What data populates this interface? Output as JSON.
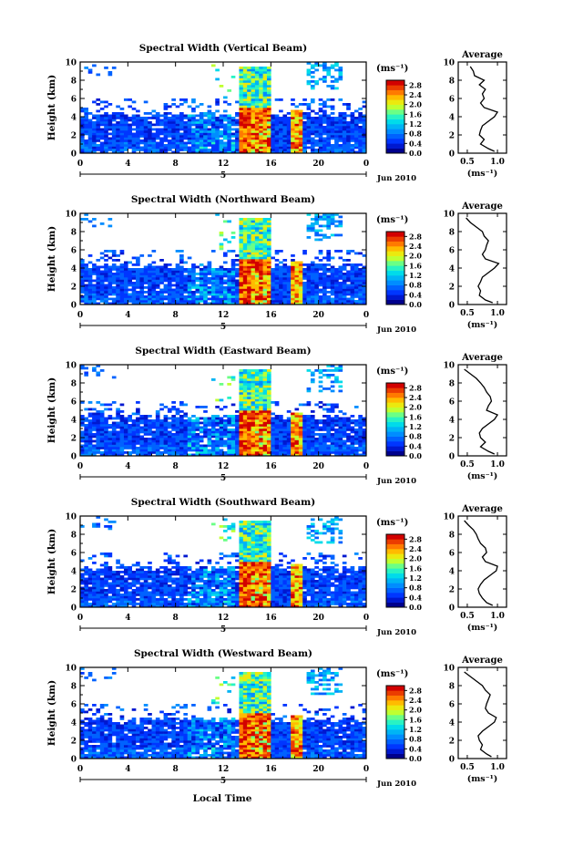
{
  "chart_data": {
    "type": "heatmap",
    "colorbar": {
      "unit": "(ms⁻¹)",
      "ticks": [
        "0.0",
        "0.4",
        "0.8",
        "1.2",
        "1.6",
        "2.0",
        "2.4",
        "2.8"
      ],
      "range": [
        0,
        3.0
      ]
    },
    "x_axis": {
      "ticks": [
        "0",
        "4",
        "8",
        "12",
        "16",
        "20",
        "0"
      ],
      "tick_values": [
        0,
        4,
        8,
        12,
        16,
        20,
        24
      ],
      "range": [
        0,
        24
      ],
      "date_marker": "5",
      "date_label": "Jun 2010",
      "label": "Local Time"
    },
    "y_axis": {
      "label": "Height (km)",
      "ticks": [
        "0",
        "2",
        "4",
        "6",
        "8",
        "10"
      ],
      "range": [
        0,
        10
      ]
    },
    "profile": {
      "title": "Average",
      "xlabel": "(ms⁻¹)",
      "x_ticks": [
        "0.5",
        "1.0"
      ],
      "x_range": [
        0.35,
        1.15
      ]
    },
    "panels": [
      {
        "title": "Spectral Width (Vertical Beam)",
        "avg_profile": {
          "height": [
            0.2,
            0.5,
            1.0,
            1.5,
            2.0,
            2.5,
            3.0,
            3.5,
            4.0,
            4.5,
            5.0,
            5.5,
            6.0,
            6.5,
            7.0,
            7.5,
            8.0,
            8.5,
            9.0,
            9.5
          ],
          "value": [
            0.95,
            0.85,
            0.72,
            0.78,
            0.7,
            0.72,
            0.75,
            0.85,
            0.95,
            1.0,
            0.78,
            0.72,
            0.78,
            0.75,
            0.8,
            0.7,
            0.78,
            0.62,
            0.6,
            0.55
          ]
        }
      },
      {
        "title": "Spectral Width (Northward Beam)",
        "avg_profile": {
          "height": [
            0.2,
            0.5,
            1.0,
            1.5,
            2.0,
            2.5,
            3.0,
            3.5,
            4.0,
            4.5,
            5.0,
            5.5,
            6.0,
            6.5,
            7.0,
            7.5,
            8.0,
            8.5,
            9.0,
            9.5
          ],
          "value": [
            0.92,
            0.8,
            0.7,
            0.72,
            0.68,
            0.72,
            0.75,
            0.85,
            0.95,
            1.02,
            0.8,
            0.75,
            0.8,
            0.82,
            0.85,
            0.78,
            0.75,
            0.65,
            0.55,
            0.48
          ]
        }
      },
      {
        "title": "Spectral Width (Eastward Beam)",
        "avg_profile": {
          "height": [
            0.2,
            0.5,
            1.0,
            1.5,
            2.0,
            2.5,
            3.0,
            3.5,
            4.0,
            4.5,
            5.0,
            5.5,
            6.0,
            6.5,
            7.0,
            7.5,
            8.0,
            8.5,
            9.0,
            9.5
          ],
          "value": [
            0.95,
            0.85,
            0.72,
            0.8,
            0.72,
            0.7,
            0.75,
            0.85,
            0.95,
            1.0,
            0.82,
            0.85,
            0.9,
            0.88,
            0.82,
            0.78,
            0.72,
            0.65,
            0.55,
            0.45
          ]
        }
      },
      {
        "title": "Spectral Width (Southward Beam)",
        "avg_profile": {
          "height": [
            0.2,
            0.5,
            1.0,
            1.5,
            2.0,
            2.5,
            3.0,
            3.5,
            4.0,
            4.5,
            5.0,
            5.5,
            6.0,
            6.5,
            7.0,
            7.5,
            8.0,
            8.5,
            9.0,
            9.5
          ],
          "value": [
            0.92,
            0.82,
            0.75,
            0.7,
            0.68,
            0.72,
            0.78,
            0.88,
            0.98,
            1.0,
            0.8,
            0.75,
            0.82,
            0.8,
            0.72,
            0.68,
            0.65,
            0.6,
            0.52,
            0.45
          ]
        }
      },
      {
        "title": "Spectral Width (Westward Beam)",
        "avg_profile": {
          "height": [
            0.2,
            0.5,
            1.0,
            1.5,
            2.0,
            2.5,
            3.0,
            3.5,
            4.0,
            4.5,
            5.0,
            5.5,
            6.0,
            6.5,
            7.0,
            7.5,
            8.0,
            8.5,
            9.0,
            9.5
          ],
          "value": [
            0.9,
            0.82,
            0.72,
            0.75,
            0.7,
            0.68,
            0.75,
            0.85,
            0.95,
            0.98,
            0.85,
            0.8,
            0.82,
            0.85,
            0.88,
            0.8,
            0.75,
            0.65,
            0.55,
            0.45
          ]
        }
      }
    ]
  }
}
